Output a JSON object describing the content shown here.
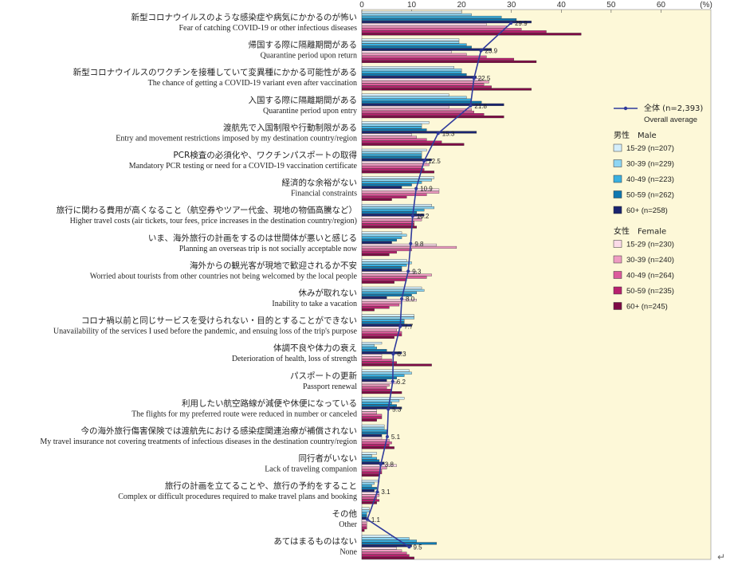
{
  "chart_data": {
    "type": "bar",
    "orientation": "horizontal",
    "unit": "(%)",
    "xlim": [
      0,
      70
    ],
    "ticks": [
      0,
      10,
      20,
      30,
      40,
      50,
      60
    ],
    "categories": [
      {
        "jp": "新型コロナウイルスのような感染症や病気にかかるのが怖い",
        "en": "Fear of catching COVID-19 or other infectious diseases"
      },
      {
        "jp": "帰国する際に隔離期間がある",
        "en": "Quarantine period upon return"
      },
      {
        "jp": "新型コロナウイルスのワクチンを接種していて変異種にかかる可能性がある",
        "en": "The chance of getting a COVID-19 variant even after vaccination"
      },
      {
        "jp": "入国する際に隔離期間がある",
        "en": "Quarantine period upon entry"
      },
      {
        "jp": "渡航先で入国制限や行動制限がある",
        "en": "Entry and movement restrictions imposed by my destination country/region"
      },
      {
        "jp": "PCR検査の必須化や、ワクチンパスポートの取得",
        "en": "Mandatory PCR testing or need for a COVID-19 vaccination certificate"
      },
      {
        "jp": "経済的な余裕がない",
        "en": "Financial constraints"
      },
      {
        "jp": "旅行に関わる費用が高くなること（航空券やツアー代金、現地の物価高騰など）",
        "en": "Higher travel costs (air tickets, tour fees, price increases in the destination country/region)"
      },
      {
        "jp": "いま、海外旅行の計画をするのは世間体が悪いと感じる",
        "en": "Planning an overseas trip is not socially acceptable now"
      },
      {
        "jp": "海外からの観光客が現地で歓迎されるか不安",
        "en": "Worried about tourists from other countries not being welcomed by the local people"
      },
      {
        "jp": "休みが取れない",
        "en": "Inability to take a vacation"
      },
      {
        "jp": "コロナ禍以前と同じサービスを受けられない・目的とすることができない",
        "en": "Unavailability of the services I used before the pandemic, and ensuing loss of the trip's purpose"
      },
      {
        "jp": "体調不良や体力の衰え",
        "en": "Deterioration of health, loss of strength"
      },
      {
        "jp": "パスポートの更新",
        "en": "Passport renewal"
      },
      {
        "jp": "利用したい航空路線が減便や休便になっている",
        "en": "The flights for my preferred route were reduced in number or canceled"
      },
      {
        "jp": "今の海外旅行傷害保険では渡航先における感染症関連治療が補償されない",
        "en": "My travel insurance not covering treatments of infectious diseases in the destination country/region"
      },
      {
        "jp": "同行者がいない",
        "en": "Lack of traveling companion"
      },
      {
        "jp": "旅行の計画を立てることや、旅行の予約をすること",
        "en": "Complex or difficult procedures required to make travel plans and booking"
      },
      {
        "jp": "その他",
        "en": "Other"
      },
      {
        "jp": "あてはまるものはない",
        "en": "None"
      }
    ],
    "overall": {
      "name_jp": "全体 (n=2,393)",
      "name_en": "Overall average",
      "values": [
        29.9,
        23.9,
        22.5,
        21.8,
        15.3,
        12.5,
        10.9,
        10.2,
        9.8,
        9.3,
        8.0,
        7.7,
        6.3,
        6.2,
        5.3,
        5.1,
        3.8,
        3.1,
        1.1,
        9.5
      ],
      "labels": [
        "29.9",
        "23.9",
        "22.5",
        "21.8",
        "15.3",
        "12.5",
        "10.9",
        "10.2",
        "9.8",
        "9.3",
        "8.0",
        "7.7",
        "6.3",
        "6.2",
        "5.3",
        "5.1",
        "3.8",
        "3.1",
        "1.1",
        "9.5"
      ]
    },
    "groups": [
      {
        "header": "男性　Male",
        "series_idx": [
          0,
          1,
          2,
          3,
          4
        ]
      },
      {
        "header": "女性　Female",
        "series_idx": [
          5,
          6,
          7,
          8,
          9
        ]
      }
    ],
    "series": [
      {
        "name": "15-29 (n=207)",
        "color": "#d4eefb",
        "values": [
          20,
          19.5,
          18.5,
          17.5,
          13.5,
          13,
          14.5,
          14,
          8,
          9,
          12,
          10.5,
          4,
          9.5,
          8.5,
          4.5,
          3,
          3.5,
          1.5,
          6
        ]
      },
      {
        "name": "30-39 (n=229)",
        "color": "#8ed6f3",
        "values": [
          22,
          19.5,
          20,
          21,
          12,
          12,
          14,
          14.5,
          9,
          10,
          12.5,
          10.5,
          2.5,
          10,
          7.5,
          4.5,
          2,
          2.5,
          1.5,
          9.5
        ]
      },
      {
        "name": "40-49 (n=223)",
        "color": "#3ab0e0",
        "values": [
          28,
          21,
          20,
          22,
          12,
          12,
          12,
          12.5,
          8,
          9,
          11,
          8.5,
          3,
          8.5,
          6,
          5,
          3,
          2,
          1,
          11
        ]
      },
      {
        "name": "50-59 (n=262)",
        "color": "#0f78b0",
        "values": [
          31,
          22,
          21,
          24,
          13,
          12,
          10,
          11,
          7,
          8,
          10,
          8.5,
          5,
          7,
          7,
          5,
          3.5,
          3,
          1,
          15
        ]
      },
      {
        "name": "60+   (n=258)",
        "color": "#1a2470",
        "values": [
          34,
          26,
          23,
          28.5,
          23,
          14,
          8,
          12.5,
          6,
          8,
          5,
          10,
          8,
          5,
          8,
          4,
          4.5,
          2.5,
          1,
          10
        ]
      },
      {
        "name": "15-29 (n=230)",
        "color": "#fbdbe8",
        "values": [
          25,
          18,
          24,
          17.5,
          10,
          13,
          15.5,
          12,
          15,
          11,
          11,
          7.5,
          4,
          7,
          3,
          4,
          7,
          3.5,
          1.5,
          7
        ]
      },
      {
        "name": "30-39 (n=240)",
        "color": "#ee9cc2",
        "values": [
          29,
          21,
          25.5,
          22,
          11,
          13.5,
          15.5,
          12,
          19,
          14,
          8,
          7,
          4,
          5.5,
          3,
          5.5,
          5,
          3.5,
          1,
          8
        ]
      },
      {
        "name": "40-49 (n=264)",
        "color": "#dc5b9c",
        "values": [
          32,
          25,
          24.5,
          22.5,
          13,
          12,
          13,
          10.5,
          10,
          13,
          7.5,
          8,
          6,
          5,
          4,
          6,
          4,
          3,
          1,
          9
        ]
      },
      {
        "name": "50-59 (n=235)",
        "color": "#b8206e",
        "values": [
          37,
          30.5,
          26,
          24.5,
          16,
          12.5,
          9,
          10.5,
          7,
          9,
          5.5,
          8,
          7,
          6,
          4,
          5.5,
          4,
          3.5,
          1,
          9.5
        ]
      },
      {
        "name": "60+   (n=245)",
        "color": "#7e0a44",
        "values": [
          44,
          35,
          34,
          28.5,
          20.5,
          14.5,
          6,
          11,
          5.5,
          6.5,
          2.5,
          6.5,
          14,
          8,
          3,
          6.5,
          3.5,
          3,
          0.5,
          10.5
        ]
      }
    ]
  }
}
